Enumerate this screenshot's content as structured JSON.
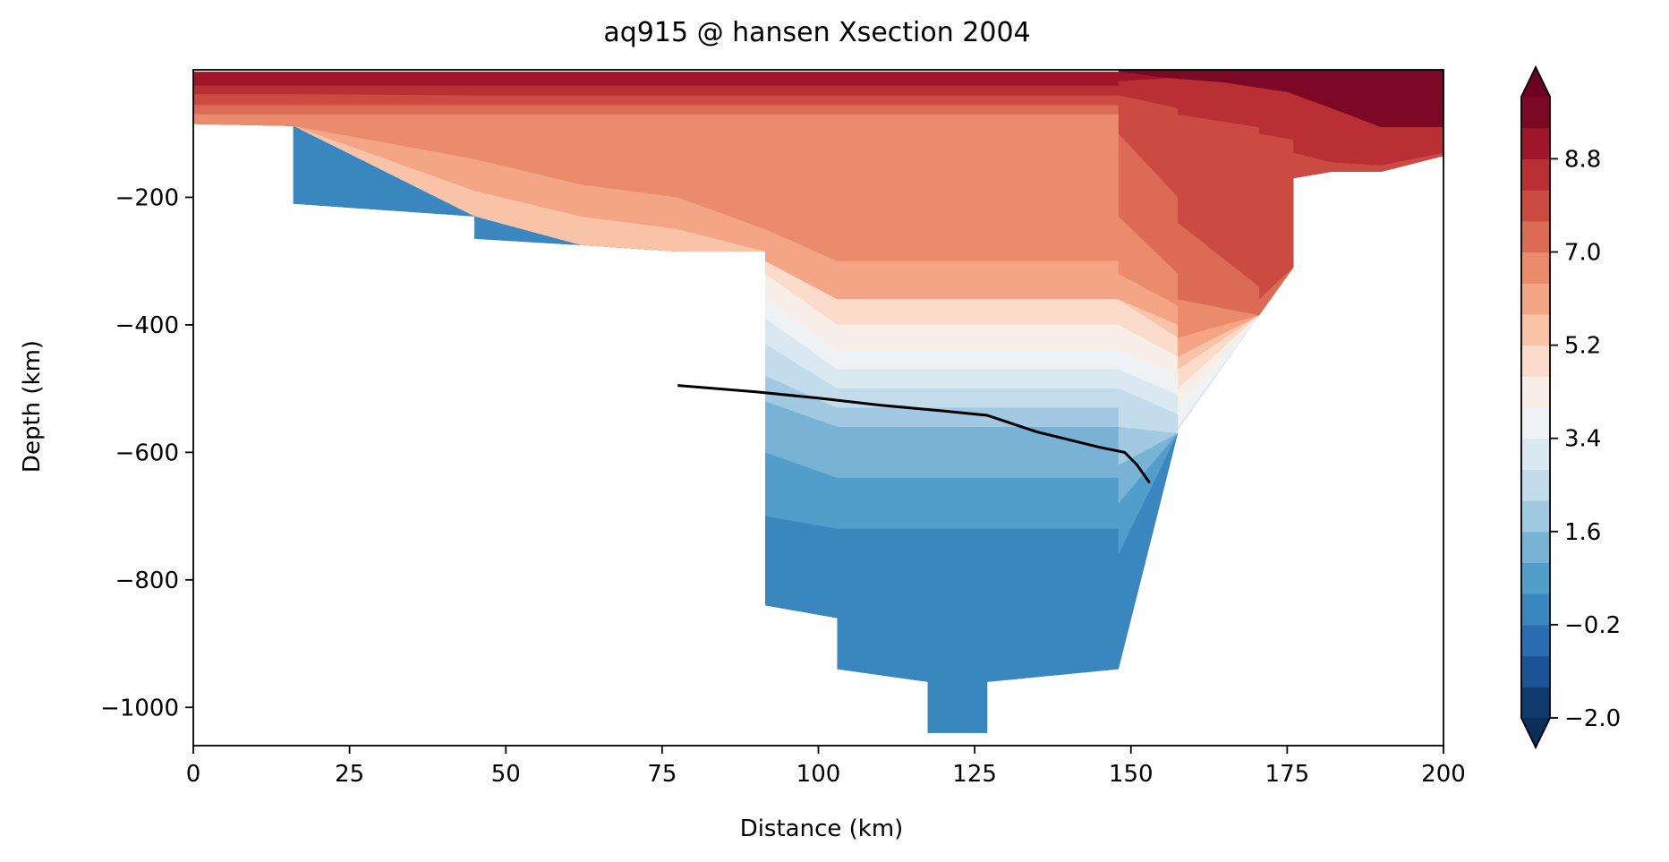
{
  "chart_data": {
    "type": "contour",
    "title": "aq915 @ hansen Xsection 2004",
    "xlabel": "Distance (km)",
    "ylabel": "Depth (km)",
    "xlim": [
      0,
      200
    ],
    "ylim": [
      -1060,
      0
    ],
    "x_ticks": [
      0,
      25,
      50,
      75,
      100,
      125,
      150,
      175,
      200
    ],
    "x_tick_labels": [
      "0",
      "25",
      "50",
      "75",
      "100",
      "125",
      "150",
      "175",
      "200"
    ],
    "y_ticks": [
      -200,
      -400,
      -600,
      -800,
      -1000
    ],
    "y_tick_labels": [
      "−200",
      "−400",
      "−600",
      "−800",
      "−1000"
    ],
    "colorbar": {
      "ticks": [
        -2.0,
        -0.2,
        1.6,
        3.4,
        5.2,
        7.0,
        8.8
      ],
      "tick_labels": [
        "−2.0",
        "−0.2",
        "1.6",
        "3.4",
        "5.2",
        "7.0",
        "8.8"
      ],
      "levels": [
        -2.0,
        -1.4,
        -0.8,
        -0.2,
        0.4,
        1.0,
        1.6,
        2.2,
        2.8,
        3.4,
        4.0,
        4.6,
        5.2,
        5.8,
        6.4,
        7.0,
        7.6,
        8.2,
        8.8,
        9.4,
        10.0
      ],
      "colormap": "RdBu_r",
      "extend": "both",
      "colors": [
        "#0f3a6e",
        "#1b5598",
        "#2a6db0",
        "#3a86bf",
        "#529ecb",
        "#78b3d6",
        "#a2c9e2",
        "#c3dcec",
        "#dae8f2",
        "#eef2f4",
        "#f8eee8",
        "#fbdcca",
        "#f8c3a6",
        "#f3a585",
        "#ea8b6c",
        "#db6b55",
        "#cb4b42",
        "#b92f33",
        "#9f1628",
        "#7c0825"
      ],
      "over_color": "#6b0020",
      "under_color": "#0b2f5a"
    },
    "bathymetry_line": {
      "color": "#000000",
      "x": [
        77.5,
        90,
        100,
        110,
        120,
        127,
        135,
        145,
        149,
        151,
        153
      ],
      "y": [
        -495,
        -505,
        -515,
        -526,
        -535,
        -542,
        -568,
        -592,
        -600,
        -620,
        -648
      ]
    },
    "data_points": {
      "description_x": "distance km",
      "x": [
        0,
        16,
        45,
        62,
        77.5,
        91.5,
        103,
        117.5,
        127,
        148,
        157.5,
        170.5,
        176,
        200
      ],
      "bottom_depth": [
        -85,
        -210,
        -265,
        -275,
        -285,
        -840,
        -940,
        -1040,
        -960,
        -940,
        -565,
        -385,
        -310,
        -135
      ]
    }
  }
}
